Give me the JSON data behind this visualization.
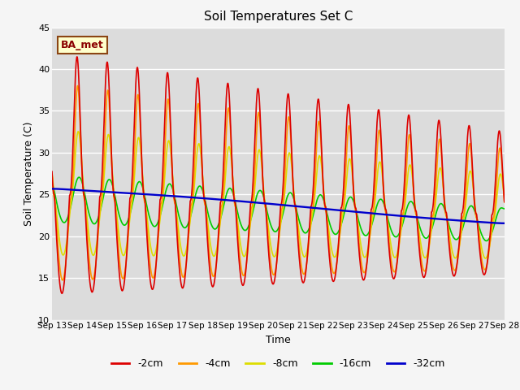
{
  "title": "Soil Temperatures Set C",
  "xlabel": "Time",
  "ylabel": "Soil Temperature (C)",
  "ylim": [
    10,
    45
  ],
  "xlim": [
    0,
    15
  ],
  "xtick_labels": [
    "Sep 13",
    "Sep 14",
    "Sep 15",
    "Sep 16",
    "Sep 17",
    "Sep 18",
    "Sep 19",
    "Sep 20",
    "Sep 21",
    "Sep 22",
    "Sep 23",
    "Sep 24",
    "Sep 25",
    "Sep 26",
    "Sep 27",
    "Sep 28"
  ],
  "xtick_positions": [
    0,
    1,
    2,
    3,
    4,
    5,
    6,
    7,
    8,
    9,
    10,
    11,
    12,
    13,
    14,
    15
  ],
  "ytick_positions": [
    10,
    15,
    20,
    25,
    30,
    35,
    40,
    45
  ],
  "legend_labels": [
    "-2cm",
    "-4cm",
    "-8cm",
    "-16cm",
    "-32cm"
  ],
  "legend_colors": [
    "#dd0000",
    "#ff9900",
    "#dddd00",
    "#00cc00",
    "#0000cc"
  ],
  "annotation_text": "BA_met",
  "bg_color": "#dcdcdc",
  "title_fontsize": 11
}
